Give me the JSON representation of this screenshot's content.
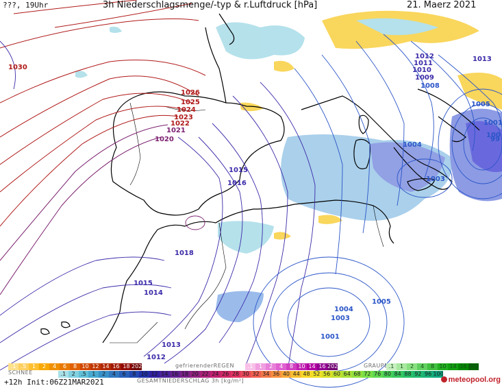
{
  "header": {
    "left": "???, 19Uhr",
    "title": "3h Niederschlagsmenge/-typ & r.Luftdruck [hPa]",
    "date": "21. Maerz 2021"
  },
  "isobars": [
    {
      "label": "1030",
      "color": "#b01818"
    },
    {
      "label": "1026",
      "color": "#b01818"
    },
    {
      "label": "1025",
      "color": "#b01818"
    },
    {
      "label": "1024",
      "color": "#b01818"
    },
    {
      "label": "1023",
      "color": "#b01818"
    },
    {
      "label": "1022",
      "color": "#b01818"
    },
    {
      "label": "1021",
      "color": "#7a1e6e"
    },
    {
      "label": "1020",
      "color": "#7a1e6e"
    },
    {
      "label": "1015",
      "color": "#3a2aa8"
    },
    {
      "label": "1016",
      "color": "#3a2aa8"
    },
    {
      "label": "1018",
      "color": "#3a2aa8"
    },
    {
      "label": "1015",
      "color": "#3a2aa8"
    },
    {
      "label": "1014",
      "color": "#3a2aa8"
    },
    {
      "label": "1013",
      "color": "#3a2aa8"
    },
    {
      "label": "1012",
      "color": "#3a2aa8"
    },
    {
      "label": "1012",
      "color": "#3a2aa8"
    },
    {
      "label": "1011",
      "color": "#3a2aa8"
    },
    {
      "label": "1010",
      "color": "#3a2aa8"
    },
    {
      "label": "1009",
      "color": "#3a2aa8"
    },
    {
      "label": "1008",
      "color": "#2a55c8"
    },
    {
      "label": "1013",
      "color": "#3a2aa8"
    },
    {
      "label": "1005",
      "color": "#2a55c8"
    },
    {
      "label": "1004",
      "color": "#2a55c8"
    },
    {
      "label": "1003",
      "color": "#2a55c8"
    },
    {
      "label": "1001",
      "color": "#2a55c8"
    },
    {
      "label": "1004",
      "color": "#2a55c8"
    },
    {
      "label": "1003",
      "color": "#2a55c8"
    },
    {
      "label": "1005",
      "color": "#2a55c8"
    },
    {
      "label": "1001",
      "color": "#2a55c8"
    },
    {
      "label": "100",
      "color": "#2a55c8"
    },
    {
      "label": "99",
      "color": "#2a55c8"
    }
  ],
  "legend": {
    "snow_label": "SCHNEE",
    "freezing_rain_label": "gefrierenderREGEN",
    "graupel_label": "GRAUPEL",
    "total_label": "GESAMTNIEDERSCHLAG 3h [kg/m²]",
    "rain_scale": {
      "values": [
        ".1",
        ".5",
        "1",
        "2",
        "4",
        "6",
        "8",
        "10",
        "12",
        "14",
        "16",
        "18",
        "2025+"
      ],
      "colors": [
        "#ffe08a",
        "#ffd060",
        "#ffc030",
        "#f8a800",
        "#f09000",
        "#e87800",
        "#e06000",
        "#d04800",
        "#c03800",
        "#b02800",
        "#a01800",
        "#900800",
        "#700000"
      ]
    },
    "freezing_scale": {
      "values": [
        ".1",
        "1",
        "2",
        "4",
        "8",
        "10",
        "14",
        "16",
        "2025+"
      ],
      "colors": [
        "#f8c0e8",
        "#f0a0e0",
        "#e880d8",
        "#e060d0",
        "#d040c0",
        "#c020b0",
        "#b000a0",
        "#900090",
        "#700070"
      ]
    },
    "graupel_scale": {
      "values": [
        ".1",
        "1",
        "2",
        "4",
        "8",
        "10",
        "14",
        "16",
        "2025+"
      ],
      "colors": [
        "#c8f0c0",
        "#a8e8a0",
        "#88e080",
        "#60d060",
        "#40c040",
        "#20b020",
        "#10a010",
        "#008800",
        "#006600"
      ]
    },
    "snow_scale": {
      "values": [
        ".1",
        "2",
        ".5",
        "1",
        "2",
        "4",
        "6",
        "8",
        "10",
        "12",
        "14",
        "16",
        "18",
        "20",
        "22",
        "24",
        "26",
        "28",
        "30",
        "32",
        "34",
        "36",
        "40",
        "44",
        "48",
        "52",
        "56",
        "60",
        "64",
        "68",
        "72",
        "76",
        "80",
        "84",
        "88",
        "92",
        "96",
        "100"
      ],
      "colors": [
        "#a8e0e8",
        "#80d0e0",
        "#60c0d8",
        "#48a8d0",
        "#3890c8",
        "#3078c0",
        "#2860b8",
        "#2048b0",
        "#2030a8",
        "#3020a0",
        "#482098",
        "#602090",
        "#782088",
        "#902080",
        "#a82078",
        "#c02070",
        "#d02868",
        "#e03060",
        "#e84858",
        "#f06050",
        "#f07848",
        "#f89040",
        "#f8a838",
        "#f8c030",
        "#f8d828",
        "#f0e028",
        "#d8e028",
        "#c0e030",
        "#a8e038",
        "#90e040",
        "#78e048",
        "#60d850",
        "#48d058",
        "#38c860",
        "#28c068",
        "#20b870",
        "#18b078",
        "#10a880"
      ]
    }
  },
  "footer": {
    "run": "+12h Init:06Z21MAR2021",
    "logo": "meteopool.org"
  }
}
